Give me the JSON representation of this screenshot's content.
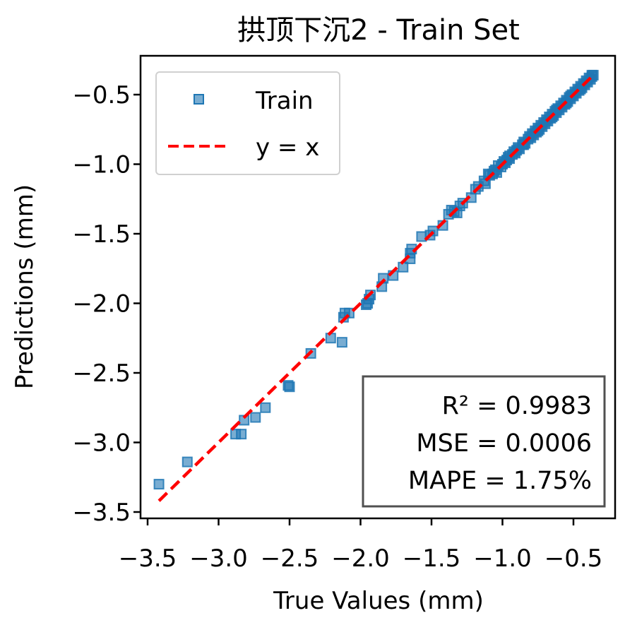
{
  "chart_data": {
    "type": "scatter",
    "title": "拱顶下沉2 - Train Set",
    "xlabel": "True Values (mm)",
    "ylabel": "Predictions (mm)",
    "xlim": [
      -3.55,
      -0.28
    ],
    "ylim": [
      -3.55,
      -0.28
    ],
    "xticks": [
      -3.5,
      -3.0,
      -2.5,
      -2.0,
      -1.5,
      -1.0,
      -0.5
    ],
    "yticks": [
      -3.5,
      -3.0,
      -2.5,
      -2.0,
      -1.5,
      -1.0,
      -0.5
    ],
    "xtick_labels": [
      "−3.5",
      "−3.0",
      "−2.5",
      "−2.0",
      "−1.5",
      "−1.0",
      "−0.5"
    ],
    "ytick_labels": [
      "−3.5",
      "−3.0",
      "−2.5",
      "−2.0",
      "−1.5",
      "−1.0",
      "−0.5"
    ],
    "grid": false,
    "legend": {
      "placement": "top-left",
      "entries": [
        "Train",
        "y = x"
      ]
    },
    "series": [
      {
        "name": "Train",
        "marker": "square",
        "color": "#1f77b4",
        "points": [
          [
            -3.42,
            -3.3
          ],
          [
            -3.22,
            -3.14
          ],
          [
            -2.88,
            -2.94
          ],
          [
            -2.84,
            -2.94
          ],
          [
            -2.82,
            -2.84
          ],
          [
            -2.74,
            -2.82
          ],
          [
            -2.67,
            -2.75
          ],
          [
            -2.51,
            -2.59
          ],
          [
            -2.5,
            -2.6
          ],
          [
            -2.35,
            -2.36
          ],
          [
            -2.21,
            -2.25
          ],
          [
            -2.13,
            -2.28
          ],
          [
            -2.12,
            -2.1
          ],
          [
            -2.11,
            -2.07
          ],
          [
            -2.08,
            -2.07
          ],
          [
            -1.96,
            -2.01
          ],
          [
            -1.95,
            -2.0
          ],
          [
            -1.94,
            -1.97
          ],
          [
            -1.93,
            -1.94
          ],
          [
            -1.85,
            -1.88
          ],
          [
            -1.84,
            -1.82
          ],
          [
            -1.77,
            -1.8
          ],
          [
            -1.7,
            -1.74
          ],
          [
            -1.65,
            -1.68
          ],
          [
            -1.65,
            -1.64
          ],
          [
            -1.64,
            -1.61
          ],
          [
            -1.57,
            -1.52
          ],
          [
            -1.51,
            -1.51
          ],
          [
            -1.49,
            -1.48
          ],
          [
            -1.42,
            -1.44
          ],
          [
            -1.38,
            -1.36
          ],
          [
            -1.36,
            -1.33
          ],
          [
            -1.34,
            -1.34
          ],
          [
            -1.32,
            -1.35
          ],
          [
            -1.3,
            -1.3
          ],
          [
            -1.28,
            -1.28
          ],
          [
            -1.22,
            -1.24
          ],
          [
            -1.19,
            -1.18
          ],
          [
            -1.17,
            -1.16
          ],
          [
            -1.13,
            -1.12
          ],
          [
            -1.12,
            -1.14
          ],
          [
            -1.1,
            -1.07
          ],
          [
            -1.09,
            -1.08
          ],
          [
            -1.07,
            -1.07
          ],
          [
            -1.06,
            -1.05
          ],
          [
            -1.05,
            -1.04
          ],
          [
            -1.04,
            -1.06
          ],
          [
            -1.03,
            -1.01
          ],
          [
            -1.01,
            -1.02
          ],
          [
            -1.0,
            -1.0
          ],
          [
            -0.99,
            -0.98
          ],
          [
            -0.98,
            -0.99
          ],
          [
            -0.97,
            -0.97
          ],
          [
            -0.96,
            -0.95
          ],
          [
            -0.95,
            -0.96
          ],
          [
            -0.93,
            -0.93
          ],
          [
            -0.92,
            -0.91
          ],
          [
            -0.91,
            -0.92
          ],
          [
            -0.9,
            -0.9
          ],
          [
            -0.89,
            -0.88
          ],
          [
            -0.88,
            -0.89
          ],
          [
            -0.86,
            -0.86
          ],
          [
            -0.85,
            -0.84
          ],
          [
            -0.84,
            -0.85
          ],
          [
            -0.82,
            -0.82
          ],
          [
            -0.81,
            -0.8
          ],
          [
            -0.8,
            -0.81
          ],
          [
            -0.79,
            -0.78
          ],
          [
            -0.78,
            -0.79
          ],
          [
            -0.77,
            -0.76
          ],
          [
            -0.76,
            -0.77
          ],
          [
            -0.75,
            -0.74
          ],
          [
            -0.74,
            -0.75
          ],
          [
            -0.73,
            -0.72
          ],
          [
            -0.72,
            -0.73
          ],
          [
            -0.71,
            -0.7
          ],
          [
            -0.7,
            -0.71
          ],
          [
            -0.69,
            -0.68
          ],
          [
            -0.68,
            -0.69
          ],
          [
            -0.67,
            -0.66
          ],
          [
            -0.66,
            -0.67
          ],
          [
            -0.65,
            -0.64
          ],
          [
            -0.64,
            -0.65
          ],
          [
            -0.63,
            -0.62
          ],
          [
            -0.62,
            -0.63
          ],
          [
            -0.61,
            -0.6
          ],
          [
            -0.6,
            -0.61
          ],
          [
            -0.59,
            -0.58
          ],
          [
            -0.58,
            -0.59
          ],
          [
            -0.57,
            -0.56
          ],
          [
            -0.56,
            -0.57
          ],
          [
            -0.55,
            -0.54
          ],
          [
            -0.54,
            -0.55
          ],
          [
            -0.53,
            -0.52
          ],
          [
            -0.52,
            -0.53
          ],
          [
            -0.51,
            -0.5
          ],
          [
            -0.5,
            -0.51
          ],
          [
            -0.49,
            -0.48
          ],
          [
            -0.48,
            -0.49
          ],
          [
            -0.47,
            -0.46
          ],
          [
            -0.46,
            -0.47
          ],
          [
            -0.45,
            -0.44
          ],
          [
            -0.44,
            -0.45
          ],
          [
            -0.43,
            -0.42
          ],
          [
            -0.42,
            -0.43
          ],
          [
            -0.41,
            -0.4
          ],
          [
            -0.4,
            -0.41
          ],
          [
            -0.39,
            -0.38
          ],
          [
            -0.38,
            -0.39
          ],
          [
            -0.37,
            -0.36
          ],
          [
            -0.37,
            -0.37
          ],
          [
            -0.36,
            -0.36
          ],
          [
            -0.45,
            -0.46
          ],
          [
            -0.55,
            -0.56
          ],
          [
            -0.65,
            -0.66
          ],
          [
            -0.75,
            -0.76
          ],
          [
            -0.85,
            -0.86
          ],
          [
            -0.95,
            -0.94
          ],
          [
            -0.62,
            -0.61
          ],
          [
            -0.52,
            -0.51
          ]
        ]
      },
      {
        "name": "y = x",
        "line_style": "dashed",
        "color": "#ff0000",
        "x": [
          -3.42,
          -0.36
        ],
        "y": [
          -3.42,
          -0.36
        ]
      }
    ],
    "metrics_box": {
      "placement": "bottom-right",
      "lines": [
        "R² = 0.9983",
        "MSE = 0.0006",
        "MAPE = 1.75%"
      ]
    }
  }
}
